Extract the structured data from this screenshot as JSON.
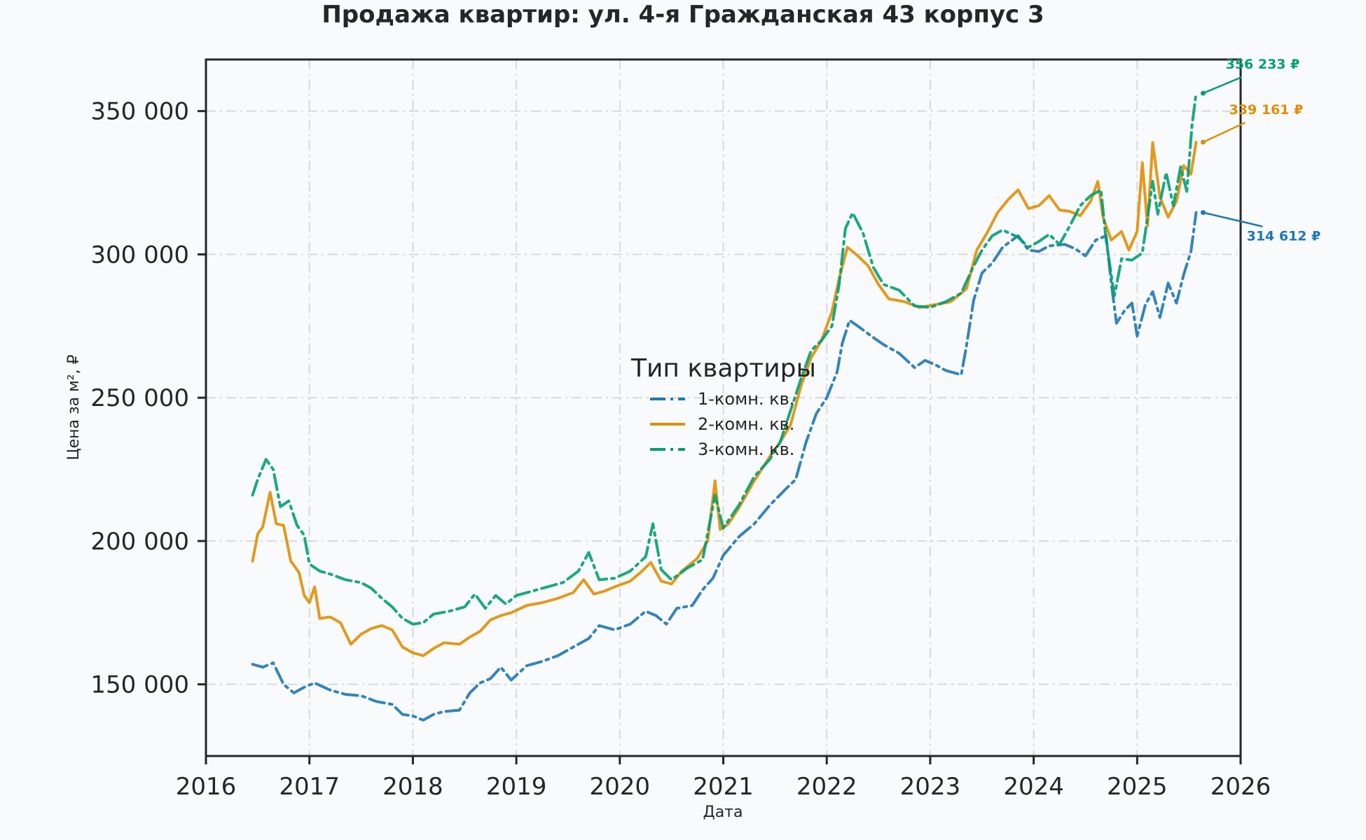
{
  "chart_data": {
    "type": "line",
    "title": "Продажа квартир: ул. 4-я Гражданская 43 корпус 3",
    "xlabel": "Дата",
    "ylabel": "Цена за м², ₽",
    "xlim": [
      2016,
      2026
    ],
    "ylim": [
      125000,
      368000
    ],
    "x_ticks": [
      2016,
      2017,
      2018,
      2019,
      2020,
      2021,
      2022,
      2023,
      2024,
      2025,
      2026
    ],
    "y_ticks": [
      150000,
      200000,
      250000,
      300000,
      350000
    ],
    "y_tick_labels": [
      "150 000",
      "200 000",
      "250 000",
      "300 000",
      "350 000"
    ],
    "grid": true,
    "legend": {
      "title": "Тип квартиры",
      "placement": "center"
    },
    "series": [
      {
        "name": "1-комн. кв.",
        "color": "#1f77b4",
        "dash": "dashdot",
        "points": [
          [
            2016.45,
            157000
          ],
          [
            2016.55,
            156000
          ],
          [
            2016.65,
            157500
          ],
          [
            2016.75,
            150000
          ],
          [
            2016.85,
            147000
          ],
          [
            2016.95,
            149000
          ],
          [
            2017.05,
            150500
          ],
          [
            2017.2,
            148000
          ],
          [
            2017.35,
            146500
          ],
          [
            2017.5,
            146000
          ],
          [
            2017.65,
            144000
          ],
          [
            2017.8,
            143000
          ],
          [
            2017.9,
            139500
          ],
          [
            2018.0,
            139000
          ],
          [
            2018.1,
            137500
          ],
          [
            2018.2,
            139500
          ],
          [
            2018.3,
            140500
          ],
          [
            2018.45,
            141000
          ],
          [
            2018.55,
            147000
          ],
          [
            2018.65,
            150500
          ],
          [
            2018.75,
            152000
          ],
          [
            2018.85,
            156000
          ],
          [
            2018.95,
            151500
          ],
          [
            2019.1,
            156500
          ],
          [
            2019.25,
            158000
          ],
          [
            2019.4,
            160000
          ],
          [
            2019.55,
            163000
          ],
          [
            2019.7,
            166000
          ],
          [
            2019.8,
            170500
          ],
          [
            2019.95,
            169000
          ],
          [
            2020.1,
            171000
          ],
          [
            2020.25,
            175500
          ],
          [
            2020.35,
            174000
          ],
          [
            2020.45,
            171000
          ],
          [
            2020.55,
            176500
          ],
          [
            2020.7,
            177500
          ],
          [
            2020.8,
            183000
          ],
          [
            2020.9,
            187000
          ],
          [
            2021.0,
            195000
          ],
          [
            2021.15,
            201500
          ],
          [
            2021.3,
            206000
          ],
          [
            2021.45,
            212500
          ],
          [
            2021.6,
            218000
          ],
          [
            2021.7,
            221500
          ],
          [
            2021.8,
            234500
          ],
          [
            2021.9,
            244500
          ],
          [
            2022.0,
            250000
          ],
          [
            2022.1,
            259000
          ],
          [
            2022.15,
            269000
          ],
          [
            2022.22,
            277000
          ],
          [
            2022.3,
            275000
          ],
          [
            2022.45,
            271000
          ],
          [
            2022.55,
            268500
          ],
          [
            2022.7,
            265500
          ],
          [
            2022.85,
            260500
          ],
          [
            2022.95,
            263000
          ],
          [
            2023.05,
            261500
          ],
          [
            2023.15,
            259500
          ],
          [
            2023.3,
            258000
          ],
          [
            2023.35,
            268000
          ],
          [
            2023.42,
            284000
          ],
          [
            2023.5,
            293500
          ],
          [
            2023.6,
            297000
          ],
          [
            2023.7,
            302500
          ],
          [
            2023.85,
            306500
          ],
          [
            2023.95,
            301500
          ],
          [
            2024.05,
            301000
          ],
          [
            2024.15,
            303000
          ],
          [
            2024.3,
            303500
          ],
          [
            2024.4,
            302000
          ],
          [
            2024.5,
            299500
          ],
          [
            2024.6,
            305000
          ],
          [
            2024.7,
            306500
          ],
          [
            2024.75,
            290000
          ],
          [
            2024.8,
            276000
          ],
          [
            2024.88,
            280500
          ],
          [
            2024.95,
            283000
          ],
          [
            2025.0,
            271500
          ],
          [
            2025.08,
            282500
          ],
          [
            2025.15,
            287000
          ],
          [
            2025.22,
            278000
          ],
          [
            2025.3,
            290000
          ],
          [
            2025.38,
            283000
          ],
          [
            2025.45,
            293000
          ],
          [
            2025.52,
            301000
          ],
          [
            2025.57,
            314612
          ]
        ]
      },
      {
        "name": "2-комн. кв.",
        "color": "#de8f05",
        "dash": "solid",
        "points": [
          [
            2016.45,
            193000
          ],
          [
            2016.5,
            202500
          ],
          [
            2016.55,
            205000
          ],
          [
            2016.62,
            217000
          ],
          [
            2016.68,
            206000
          ],
          [
            2016.75,
            205500
          ],
          [
            2016.82,
            193000
          ],
          [
            2016.9,
            189000
          ],
          [
            2016.95,
            181000
          ],
          [
            2017.0,
            178500
          ],
          [
            2017.05,
            184000
          ],
          [
            2017.1,
            173000
          ],
          [
            2017.2,
            173500
          ],
          [
            2017.3,
            171500
          ],
          [
            2017.4,
            164000
          ],
          [
            2017.5,
            167500
          ],
          [
            2017.6,
            169500
          ],
          [
            2017.7,
            170500
          ],
          [
            2017.8,
            169000
          ],
          [
            2017.9,
            163000
          ],
          [
            2018.0,
            161000
          ],
          [
            2018.1,
            160000
          ],
          [
            2018.2,
            162500
          ],
          [
            2018.3,
            164500
          ],
          [
            2018.45,
            164000
          ],
          [
            2018.55,
            166500
          ],
          [
            2018.65,
            168500
          ],
          [
            2018.75,
            172500
          ],
          [
            2018.85,
            174000
          ],
          [
            2018.95,
            175000
          ],
          [
            2019.1,
            177500
          ],
          [
            2019.25,
            178500
          ],
          [
            2019.4,
            180000
          ],
          [
            2019.55,
            182000
          ],
          [
            2019.65,
            186500
          ],
          [
            2019.75,
            181500
          ],
          [
            2019.85,
            182500
          ],
          [
            2019.95,
            184000
          ],
          [
            2020.1,
            186000
          ],
          [
            2020.2,
            189000
          ],
          [
            2020.3,
            192500
          ],
          [
            2020.4,
            186000
          ],
          [
            2020.5,
            185000
          ],
          [
            2020.6,
            189500
          ],
          [
            2020.75,
            194000
          ],
          [
            2020.85,
            200000
          ],
          [
            2020.92,
            221000
          ],
          [
            2020.97,
            204000
          ],
          [
            2021.05,
            206000
          ],
          [
            2021.15,
            211500
          ],
          [
            2021.3,
            221000
          ],
          [
            2021.45,
            229500
          ],
          [
            2021.55,
            234500
          ],
          [
            2021.65,
            240500
          ],
          [
            2021.75,
            254000
          ],
          [
            2021.85,
            264000
          ],
          [
            2021.95,
            270000
          ],
          [
            2022.05,
            280000
          ],
          [
            2022.12,
            291500
          ],
          [
            2022.2,
            302500
          ],
          [
            2022.3,
            299500
          ],
          [
            2022.4,
            296000
          ],
          [
            2022.5,
            289500
          ],
          [
            2022.6,
            284500
          ],
          [
            2022.75,
            283500
          ],
          [
            2022.9,
            281500
          ],
          [
            2023.05,
            282500
          ],
          [
            2023.2,
            283500
          ],
          [
            2023.35,
            288000
          ],
          [
            2023.45,
            301500
          ],
          [
            2023.55,
            307500
          ],
          [
            2023.65,
            314500
          ],
          [
            2023.75,
            319000
          ],
          [
            2023.85,
            322500
          ],
          [
            2023.95,
            316000
          ],
          [
            2024.05,
            317000
          ],
          [
            2024.15,
            320500
          ],
          [
            2024.25,
            315500
          ],
          [
            2024.35,
            315000
          ],
          [
            2024.45,
            313500
          ],
          [
            2024.55,
            318500
          ],
          [
            2024.62,
            325500
          ],
          [
            2024.67,
            313000
          ],
          [
            2024.75,
            305000
          ],
          [
            2024.85,
            308000
          ],
          [
            2024.92,
            301500
          ],
          [
            2025.0,
            308000
          ],
          [
            2025.05,
            332000
          ],
          [
            2025.1,
            310000
          ],
          [
            2025.15,
            339000
          ],
          [
            2025.22,
            320000
          ],
          [
            2025.3,
            313000
          ],
          [
            2025.38,
            318500
          ],
          [
            2025.45,
            331000
          ],
          [
            2025.52,
            328000
          ],
          [
            2025.57,
            339161
          ]
        ]
      },
      {
        "name": "3-комн. кв.",
        "color": "#029e73",
        "dash": "dashdot",
        "points": [
          [
            2016.45,
            216000
          ],
          [
            2016.5,
            221500
          ],
          [
            2016.58,
            228500
          ],
          [
            2016.65,
            225000
          ],
          [
            2016.72,
            212000
          ],
          [
            2016.8,
            214000
          ],
          [
            2016.88,
            205500
          ],
          [
            2016.95,
            202000
          ],
          [
            2017.0,
            192000
          ],
          [
            2017.1,
            189500
          ],
          [
            2017.2,
            188500
          ],
          [
            2017.35,
            186500
          ],
          [
            2017.5,
            185500
          ],
          [
            2017.6,
            183500
          ],
          [
            2017.7,
            180000
          ],
          [
            2017.8,
            177000
          ],
          [
            2017.9,
            173000
          ],
          [
            2018.0,
            171000
          ],
          [
            2018.1,
            171500
          ],
          [
            2018.2,
            174500
          ],
          [
            2018.35,
            175500
          ],
          [
            2018.5,
            177000
          ],
          [
            2018.6,
            181500
          ],
          [
            2018.7,
            176500
          ],
          [
            2018.8,
            181000
          ],
          [
            2018.9,
            178000
          ],
          [
            2019.0,
            181000
          ],
          [
            2019.15,
            182500
          ],
          [
            2019.3,
            184000
          ],
          [
            2019.45,
            185500
          ],
          [
            2019.6,
            189500
          ],
          [
            2019.7,
            196000
          ],
          [
            2019.8,
            186500
          ],
          [
            2019.95,
            187000
          ],
          [
            2020.1,
            189500
          ],
          [
            2020.25,
            194500
          ],
          [
            2020.32,
            206000
          ],
          [
            2020.4,
            190000
          ],
          [
            2020.5,
            186500
          ],
          [
            2020.65,
            190500
          ],
          [
            2020.8,
            193500
          ],
          [
            2020.92,
            216000
          ],
          [
            2021.0,
            204500
          ],
          [
            2021.15,
            212500
          ],
          [
            2021.3,
            222500
          ],
          [
            2021.45,
            228500
          ],
          [
            2021.55,
            234500
          ],
          [
            2021.65,
            245500
          ],
          [
            2021.75,
            256500
          ],
          [
            2021.85,
            266500
          ],
          [
            2021.95,
            270000
          ],
          [
            2022.05,
            275000
          ],
          [
            2022.12,
            289500
          ],
          [
            2022.18,
            309000
          ],
          [
            2022.25,
            314500
          ],
          [
            2022.35,
            307500
          ],
          [
            2022.45,
            295500
          ],
          [
            2022.55,
            289500
          ],
          [
            2022.7,
            287500
          ],
          [
            2022.85,
            282000
          ],
          [
            2023.0,
            281500
          ],
          [
            2023.15,
            283500
          ],
          [
            2023.3,
            286500
          ],
          [
            2023.4,
            294500
          ],
          [
            2023.5,
            301500
          ],
          [
            2023.6,
            306500
          ],
          [
            2023.7,
            308500
          ],
          [
            2023.85,
            306000
          ],
          [
            2023.95,
            302500
          ],
          [
            2024.05,
            304500
          ],
          [
            2024.15,
            307000
          ],
          [
            2024.25,
            303500
          ],
          [
            2024.35,
            310000
          ],
          [
            2024.45,
            317000
          ],
          [
            2024.55,
            320500
          ],
          [
            2024.65,
            322500
          ],
          [
            2024.7,
            305000
          ],
          [
            2024.78,
            285500
          ],
          [
            2024.85,
            298500
          ],
          [
            2024.95,
            298000
          ],
          [
            2025.05,
            300500
          ],
          [
            2025.15,
            325500
          ],
          [
            2025.2,
            314000
          ],
          [
            2025.28,
            328500
          ],
          [
            2025.35,
            317000
          ],
          [
            2025.42,
            330500
          ],
          [
            2025.48,
            322000
          ],
          [
            2025.53,
            345000
          ],
          [
            2025.57,
            356233
          ]
        ]
      }
    ],
    "annotations": [
      {
        "text": "356 233 ₽",
        "series": "3-комн. кв.",
        "x": 2025.57,
        "y": 356233,
        "color": "#029e73"
      },
      {
        "text": "339 161 ₽",
        "series": "2-комн. кв.",
        "x": 2025.57,
        "y": 339161,
        "color": "#de8f05"
      },
      {
        "text": "314 612 ₽",
        "series": "1-комн. кв.",
        "x": 2025.57,
        "y": 314612,
        "color": "#1f77b4"
      }
    ]
  }
}
